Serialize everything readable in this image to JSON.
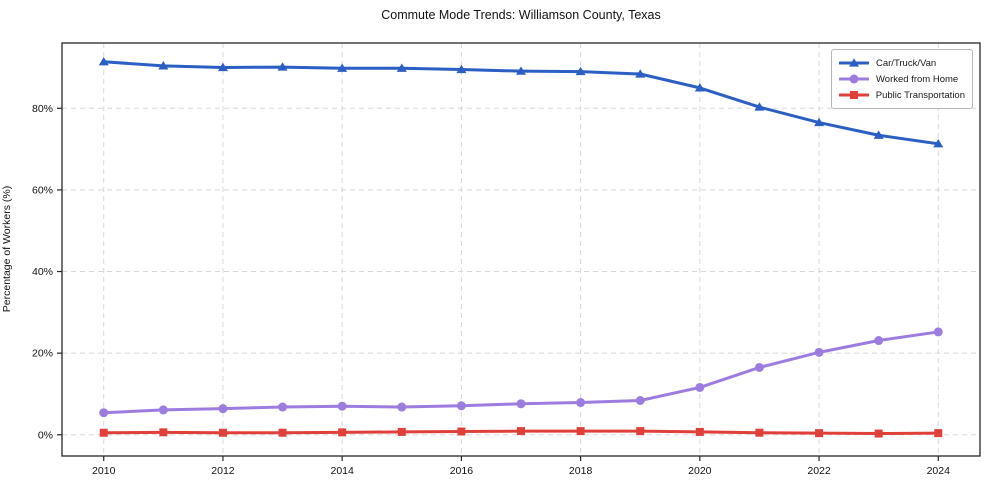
{
  "figure": {
    "title": "Commute Mode Trends: Williamson County, Texas"
  },
  "chart_data": {
    "type": "line",
    "title": "Commute Mode Trends: Williamson County, Texas",
    "xlabel": "",
    "ylabel": "Percentage of Workers (%)",
    "x": [
      2010,
      2011,
      2012,
      2013,
      2014,
      2015,
      2016,
      2017,
      2018,
      2019,
      2020,
      2021,
      2022,
      2023,
      2024
    ],
    "x_ticks": [
      2010,
      2012,
      2014,
      2016,
      2018,
      2020,
      2022,
      2024
    ],
    "x_tick_labels": [
      "2010",
      "2012",
      "2014",
      "2016",
      "2018",
      "2020",
      "2022",
      "2024"
    ],
    "y_ticks": [
      0,
      20,
      40,
      60,
      80
    ],
    "y_tick_labels": [
      "0%",
      "20%",
      "40%",
      "60%",
      "80%"
    ],
    "xlim": [
      2009.3,
      2024.7
    ],
    "ylim": [
      -5.2,
      96.0
    ],
    "grid": true,
    "grid_style": "dashed",
    "legend_position": "upper right",
    "series": [
      {
        "name": "Car/Truck/Van",
        "marker": "triangle",
        "color": "#2b5fc4",
        "values": [
          91.4,
          90.4,
          90.0,
          90.1,
          89.8,
          89.8,
          89.5,
          89.1,
          89.0,
          88.4,
          85.0,
          80.3,
          76.5,
          73.4,
          71.3
        ]
      },
      {
        "name": "Worked from Home",
        "marker": "circle",
        "color": "#9d7ce0",
        "values": [
          5.4,
          6.1,
          6.4,
          6.8,
          7.0,
          6.8,
          7.1,
          7.6,
          7.9,
          8.4,
          11.6,
          16.5,
          20.2,
          23.1,
          25.2
        ]
      },
      {
        "name": "Public Transportation",
        "marker": "square",
        "color": "#e0403a",
        "values": [
          0.5,
          0.6,
          0.5,
          0.5,
          0.6,
          0.7,
          0.8,
          0.9,
          0.9,
          0.9,
          0.7,
          0.5,
          0.4,
          0.3,
          0.4
        ]
      }
    ],
    "colors": {
      "grid": "#d8d8d8",
      "spine": "#262626",
      "tick_text": "#111111",
      "title_text": "#111111",
      "legend_border": "#b6b6b6",
      "background": "#ffffff"
    }
  }
}
